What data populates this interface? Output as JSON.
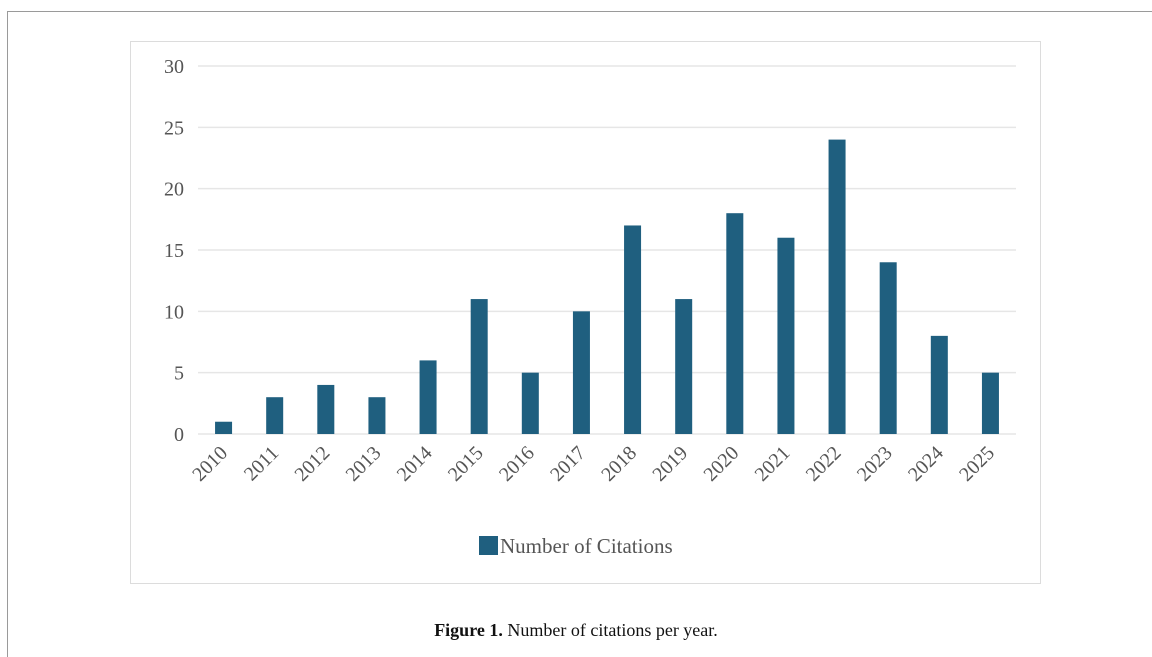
{
  "figure": {
    "caption_label": "Figure 1.",
    "caption_text": " Number of citations per year."
  },
  "chart_data": {
    "type": "bar",
    "categories": [
      "2010",
      "2011",
      "2012",
      "2013",
      "2014",
      "2015",
      "2016",
      "2017",
      "2018",
      "2019",
      "2020",
      "2021",
      "2022",
      "2023",
      "2024",
      "2025"
    ],
    "series": [
      {
        "name": "Number of Citations",
        "values": [
          1,
          3,
          4,
          3,
          6,
          11,
          5,
          10,
          17,
          11,
          18,
          16,
          24,
          14,
          8,
          5
        ],
        "color": "#1f5f7f"
      }
    ],
    "title": "",
    "xlabel": "",
    "ylabel": "",
    "ylim": [
      0,
      30
    ],
    "yticks": [
      0,
      5,
      10,
      15,
      20,
      25,
      30
    ],
    "grid": true,
    "gridColor": "#e6e6e6",
    "legend": "bottom"
  }
}
